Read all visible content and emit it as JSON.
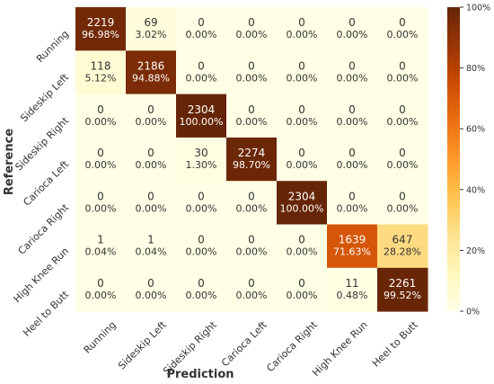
{
  "chart_data": {
    "type": "heatmap",
    "title": "",
    "xlabel": "Prediction",
    "ylabel": "Reference",
    "categories_x": [
      "Running",
      "Sideskip Left",
      "Sideskip Right",
      "Carioca Left",
      "Carioca Right",
      "High Knee Run",
      "Heel to Butt"
    ],
    "categories_y": [
      "Running",
      "Sideskip Left",
      "Sideskip Right",
      "Carioca Left",
      "Carioca Right",
      "High Knee Run",
      "Heel to Butt"
    ],
    "counts": [
      [
        2219,
        69,
        0,
        0,
        0,
        0,
        0
      ],
      [
        118,
        2186,
        0,
        0,
        0,
        0,
        0
      ],
      [
        0,
        0,
        2304,
        0,
        0,
        0,
        0
      ],
      [
        0,
        0,
        30,
        2274,
        0,
        0,
        0
      ],
      [
        0,
        0,
        0,
        0,
        2304,
        0,
        0
      ],
      [
        1,
        1,
        0,
        0,
        0,
        1639,
        647
      ],
      [
        0,
        0,
        0,
        0,
        0,
        11,
        2261
      ]
    ],
    "percent_labels": [
      [
        "96.98%",
        "3.02%",
        "0.00%",
        "0.00%",
        "0.00%",
        "0.00%",
        "0.00%"
      ],
      [
        "5.12%",
        "94.88%",
        "0.00%",
        "0.00%",
        "0.00%",
        "0.00%",
        "0.00%"
      ],
      [
        "0.00%",
        "0.00%",
        "100.00%",
        "0.00%",
        "0.00%",
        "0.00%",
        "0.00%"
      ],
      [
        "0.00%",
        "0.00%",
        "1.30%",
        "98.70%",
        "0.00%",
        "0.00%",
        "0.00%"
      ],
      [
        "0.00%",
        "0.00%",
        "0.00%",
        "0.00%",
        "100.00%",
        "0.00%",
        "0.00%"
      ],
      [
        "0.04%",
        "0.04%",
        "0.00%",
        "0.00%",
        "0.00%",
        "71.63%",
        "28.28%"
      ],
      [
        "0.00%",
        "0.00%",
        "0.00%",
        "0.00%",
        "0.00%",
        "0.48%",
        "99.52%"
      ]
    ],
    "colorbar": {
      "range": [
        0,
        100
      ],
      "ticks": [
        0,
        20,
        40,
        60,
        80,
        100
      ],
      "tick_labels": [
        "0%",
        "20%",
        "40%",
        "60%",
        "80%",
        "100%"
      ],
      "colormap": "YlOrBr",
      "colors": [
        "#ffffe5",
        "#fff7bc",
        "#fee391",
        "#fec44f",
        "#fe9929",
        "#ec7014",
        "#cc4c02",
        "#993404",
        "#662506"
      ]
    },
    "text_color_light": "#ffffff",
    "text_color_dark": "#333333"
  }
}
